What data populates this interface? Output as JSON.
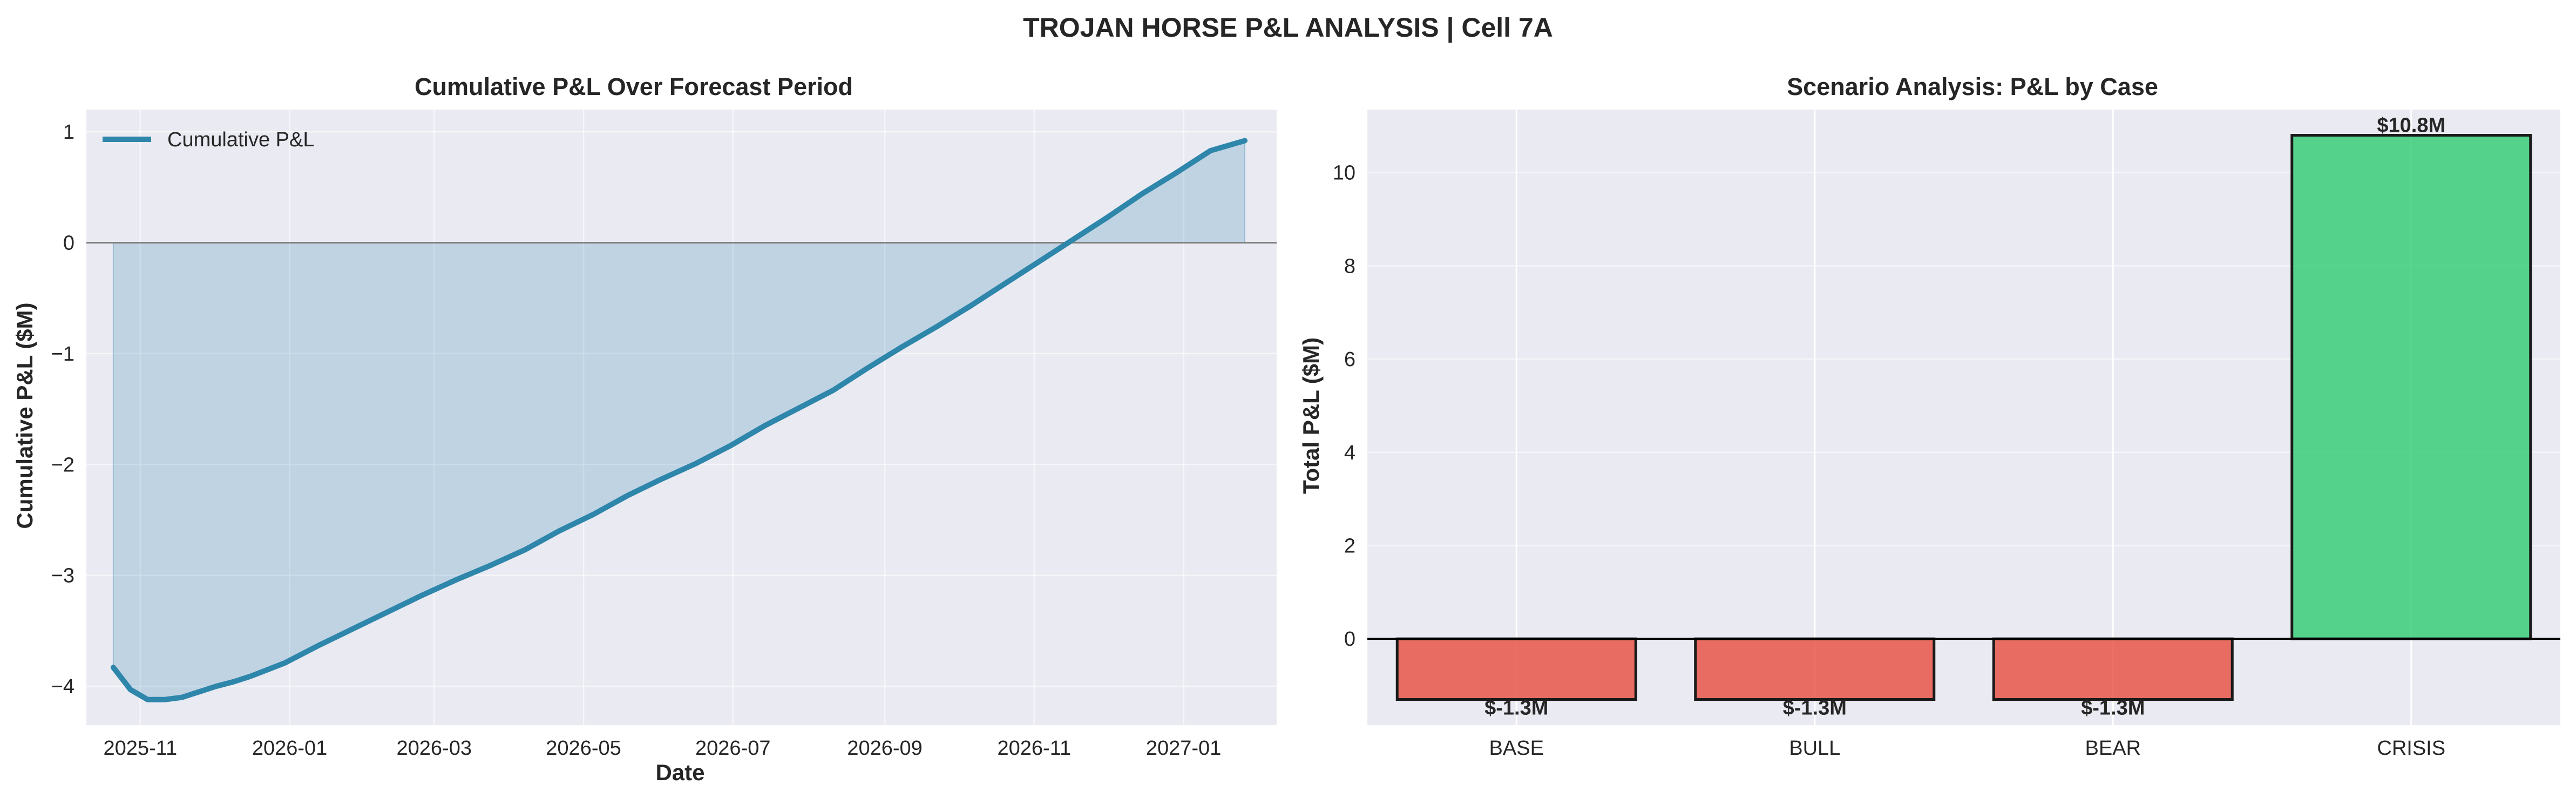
{
  "figure": {
    "suptitle": "TROJAN HORSE P&L ANALYSIS | Cell 7A"
  },
  "chart_data": [
    {
      "type": "area",
      "title": "Cumulative P&L Over Forecast Period",
      "xlabel": "Date",
      "ylabel": "Cumulative P&L ($M)",
      "x_tick_labels": [
        "2025-11",
        "2026-01",
        "2026-03",
        "2026-05",
        "2026-07",
        "2026-09",
        "2026-11",
        "2027-01"
      ],
      "y_ticks": [
        1,
        0,
        -1,
        -2,
        -3,
        -4
      ],
      "y_tick_labels": [
        "1",
        "0",
        "−1",
        "−2",
        "−3",
        "−4"
      ],
      "xlim": [
        "2025-10-10",
        "2027-02-08"
      ],
      "ylim": [
        -4.35,
        1.2
      ],
      "grid": true,
      "legend": {
        "location": "upper-left",
        "entries": [
          "Cumulative P&L"
        ]
      },
      "zero_line": true,
      "colors": {
        "line": "#2e86ab",
        "fill": "#2e86ab",
        "zero_line": "#7f7f7f",
        "background": "#eaeaf2"
      },
      "series": [
        {
          "name": "Cumulative P&L",
          "x": [
            "2025-10-21",
            "2025-10-28",
            "2025-11-04",
            "2025-11-11",
            "2025-11-18",
            "2025-11-25",
            "2025-12-02",
            "2025-12-09",
            "2025-12-16",
            "2025-12-23",
            "2025-12-30",
            "2026-01-13",
            "2026-01-27",
            "2026-02-10",
            "2026-02-24",
            "2026-03-10",
            "2026-03-24",
            "2026-04-07",
            "2026-04-21",
            "2026-05-05",
            "2026-05-19",
            "2026-06-02",
            "2026-06-16",
            "2026-06-30",
            "2026-07-14",
            "2026-07-28",
            "2026-08-11",
            "2026-08-25",
            "2026-09-08",
            "2026-09-22",
            "2026-10-06",
            "2026-10-20",
            "2026-11-03",
            "2026-11-17",
            "2026-12-01",
            "2026-12-15",
            "2026-12-29",
            "2027-01-12",
            "2027-01-26"
          ],
          "values": [
            -3.83,
            -4.03,
            -4.12,
            -4.12,
            -4.1,
            -4.05,
            -4.0,
            -3.96,
            -3.91,
            -3.85,
            -3.79,
            -3.63,
            -3.48,
            -3.33,
            -3.18,
            -3.04,
            -2.91,
            -2.77,
            -2.6,
            -2.45,
            -2.28,
            -2.13,
            -1.99,
            -1.83,
            -1.65,
            -1.49,
            -1.33,
            -1.13,
            -0.94,
            -0.76,
            -0.57,
            -0.37,
            -0.17,
            0.03,
            0.23,
            0.44,
            0.63,
            0.83,
            0.92
          ]
        }
      ]
    },
    {
      "type": "bar",
      "title": "Scenario Analysis: P&L by Case",
      "xlabel": "",
      "ylabel": "Total P&L ($M)",
      "categories": [
        "BASE",
        "BULL",
        "BEAR",
        "CRISIS"
      ],
      "values": [
        -1.3,
        -1.3,
        -1.3,
        10.8
      ],
      "data_labels": [
        "$-1.3M",
        "$-1.3M",
        "$-1.3M",
        "$10.8M"
      ],
      "y_ticks": [
        0,
        2,
        4,
        6,
        8,
        10
      ],
      "ylim": [
        -1.85,
        11.35
      ],
      "grid": true,
      "colors": {
        "negative": "#e74c3c",
        "positive": "#2ecc71",
        "edge": "#1a1a1a",
        "background": "#eaeaf2"
      }
    }
  ]
}
